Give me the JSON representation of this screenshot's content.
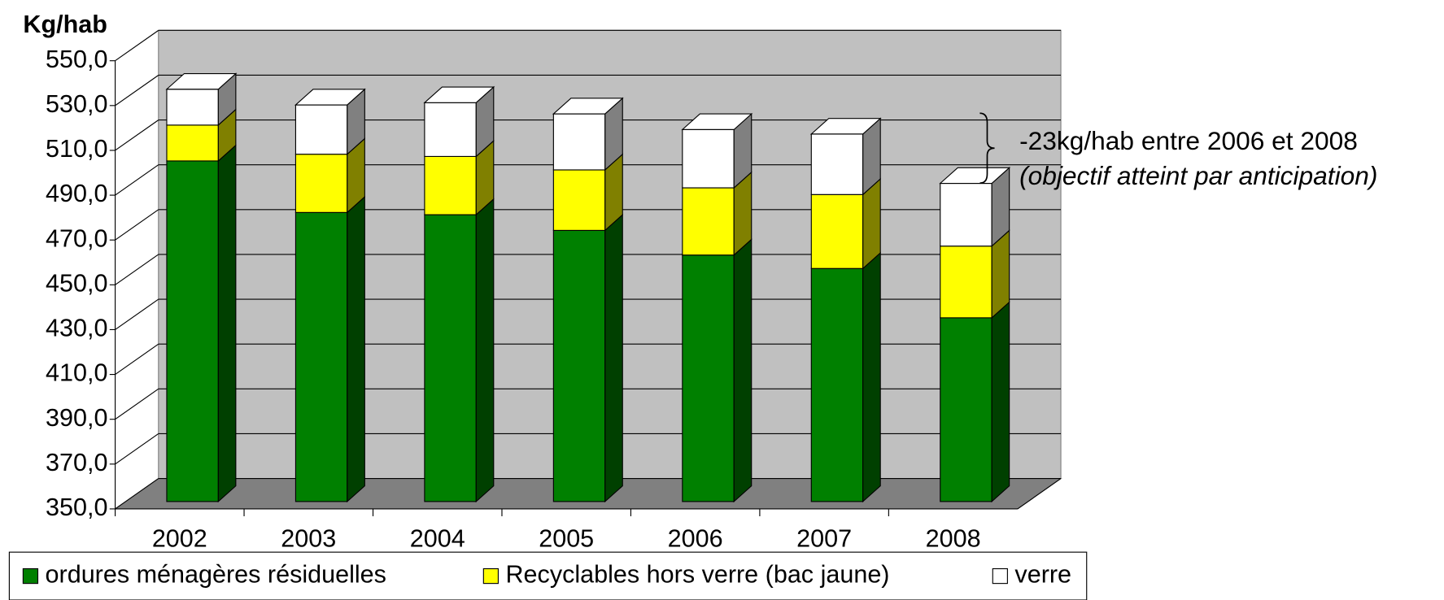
{
  "chart_data": {
    "type": "bar3d_stacked",
    "y_label": "Kg/hab",
    "categories": [
      "2002",
      "2003",
      "2004",
      "2005",
      "2006",
      "2007",
      "2008"
    ],
    "series": [
      {
        "name": "ordures ménagères résiduelles",
        "color": "#008000",
        "values": [
          502,
          479,
          478,
          471,
          460,
          454,
          432
        ]
      },
      {
        "name": "Recyclables hors verre (bac jaune)",
        "color": "#ffff00",
        "values": [
          16,
          26,
          26,
          27,
          30,
          33,
          32
        ]
      },
      {
        "name": "verre",
        "color": "#ffffff",
        "values": [
          16,
          22,
          24,
          25,
          26,
          27,
          28
        ]
      }
    ],
    "ylim": [
      350,
      550
    ],
    "yticks": [
      {
        "value": 350,
        "label": "350,0"
      },
      {
        "value": 370,
        "label": "370,0"
      },
      {
        "value": 390,
        "label": "390,0"
      },
      {
        "value": 410,
        "label": "410,0"
      },
      {
        "value": 430,
        "label": "430,0"
      },
      {
        "value": 450,
        "label": "450,0"
      },
      {
        "value": 470,
        "label": "470,0"
      },
      {
        "value": 490,
        "label": "490,0"
      },
      {
        "value": 510,
        "label": "510,0"
      },
      {
        "value": 530,
        "label": "530,0"
      },
      {
        "value": 550,
        "label": "550,0"
      }
    ],
    "grid": true,
    "legend": "bottom",
    "annotations": [
      "-23kg/hab entre 2006 et 2008",
      "(objectif atteint par anticipation)"
    ]
  }
}
